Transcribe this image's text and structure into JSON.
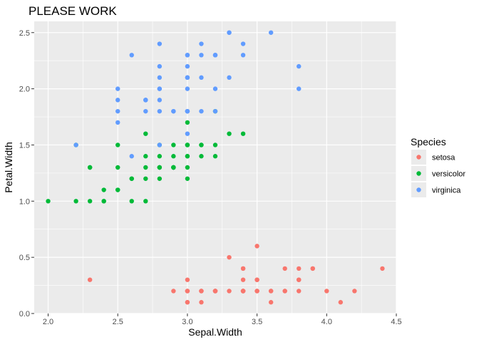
{
  "chart_data": {
    "type": "scatter",
    "title": "PLEASE WORK",
    "xlabel": "Sepal.Width",
    "ylabel": "Petal.Width",
    "xlim": [
      1.9,
      4.5
    ],
    "ylim": [
      0.0,
      2.6
    ],
    "x_ticks": [
      "2.0",
      "2.5",
      "3.0",
      "3.5",
      "4.0",
      "4.5"
    ],
    "y_ticks": [
      "0.0",
      "0.5",
      "1.0",
      "1.5",
      "2.0",
      "2.5"
    ],
    "grid": true,
    "legend_title": "Species",
    "legend_position": "right",
    "series": [
      {
        "name": "setosa",
        "color": "#F8766D",
        "points": [
          [
            3.5,
            0.2
          ],
          [
            3.0,
            0.2
          ],
          [
            3.2,
            0.2
          ],
          [
            3.1,
            0.2
          ],
          [
            3.6,
            0.2
          ],
          [
            3.9,
            0.4
          ],
          [
            3.4,
            0.3
          ],
          [
            3.4,
            0.2
          ],
          [
            2.9,
            0.2
          ],
          [
            3.1,
            0.1
          ],
          [
            3.7,
            0.2
          ],
          [
            3.4,
            0.2
          ],
          [
            3.0,
            0.1
          ],
          [
            3.0,
            0.1
          ],
          [
            4.0,
            0.2
          ],
          [
            4.4,
            0.4
          ],
          [
            3.9,
            0.4
          ],
          [
            3.5,
            0.3
          ],
          [
            3.8,
            0.3
          ],
          [
            3.8,
            0.3
          ],
          [
            3.4,
            0.2
          ],
          [
            3.7,
            0.4
          ],
          [
            3.6,
            0.2
          ],
          [
            3.3,
            0.5
          ],
          [
            3.4,
            0.2
          ],
          [
            3.0,
            0.2
          ],
          [
            3.4,
            0.4
          ],
          [
            3.5,
            0.2
          ],
          [
            3.4,
            0.2
          ],
          [
            3.2,
            0.2
          ],
          [
            3.1,
            0.2
          ],
          [
            3.4,
            0.4
          ],
          [
            4.1,
            0.1
          ],
          [
            4.2,
            0.2
          ],
          [
            3.1,
            0.2
          ],
          [
            3.2,
            0.2
          ],
          [
            3.5,
            0.2
          ],
          [
            3.6,
            0.1
          ],
          [
            3.0,
            0.2
          ],
          [
            3.4,
            0.2
          ],
          [
            3.5,
            0.3
          ],
          [
            2.3,
            0.3
          ],
          [
            3.2,
            0.2
          ],
          [
            3.5,
            0.6
          ],
          [
            3.8,
            0.4
          ],
          [
            3.0,
            0.3
          ],
          [
            3.8,
            0.2
          ],
          [
            3.2,
            0.2
          ],
          [
            3.7,
            0.2
          ],
          [
            3.3,
            0.2
          ]
        ]
      },
      {
        "name": "versicolor",
        "color": "#00BA38",
        "points": [
          [
            3.2,
            1.4
          ],
          [
            3.2,
            1.5
          ],
          [
            3.1,
            1.5
          ],
          [
            2.3,
            1.3
          ],
          [
            2.8,
            1.5
          ],
          [
            2.8,
            1.3
          ],
          [
            3.3,
            1.6
          ],
          [
            2.4,
            1.0
          ],
          [
            2.9,
            1.3
          ],
          [
            2.7,
            1.4
          ],
          [
            2.0,
            1.0
          ],
          [
            3.0,
            1.5
          ],
          [
            2.2,
            1.0
          ],
          [
            2.9,
            1.4
          ],
          [
            2.9,
            1.3
          ],
          [
            3.1,
            1.4
          ],
          [
            3.0,
            1.5
          ],
          [
            2.7,
            1.0
          ],
          [
            2.2,
            1.5
          ],
          [
            2.5,
            1.1
          ],
          [
            3.2,
            1.8
          ],
          [
            2.8,
            1.3
          ],
          [
            2.5,
            1.5
          ],
          [
            2.8,
            1.2
          ],
          [
            2.9,
            1.3
          ],
          [
            3.0,
            1.4
          ],
          [
            2.8,
            1.4
          ],
          [
            3.0,
            1.7
          ],
          [
            2.9,
            1.5
          ],
          [
            2.6,
            1.0
          ],
          [
            2.4,
            1.1
          ],
          [
            2.4,
            1.0
          ],
          [
            2.7,
            1.2
          ],
          [
            2.7,
            1.6
          ],
          [
            3.0,
            1.5
          ],
          [
            3.4,
            1.6
          ],
          [
            3.1,
            1.5
          ],
          [
            2.3,
            1.3
          ],
          [
            3.0,
            1.3
          ],
          [
            2.5,
            1.3
          ],
          [
            2.6,
            1.2
          ],
          [
            3.0,
            1.4
          ],
          [
            2.6,
            1.2
          ],
          [
            2.3,
            1.0
          ],
          [
            2.7,
            1.3
          ],
          [
            3.0,
            1.2
          ],
          [
            2.9,
            1.3
          ],
          [
            2.9,
            1.3
          ],
          [
            2.5,
            1.1
          ],
          [
            2.8,
            1.3
          ]
        ]
      },
      {
        "name": "virginica",
        "color": "#619CFF",
        "points": [
          [
            3.3,
            2.5
          ],
          [
            2.7,
            1.9
          ],
          [
            3.0,
            2.1
          ],
          [
            2.9,
            1.8
          ],
          [
            3.0,
            2.2
          ],
          [
            3.0,
            2.1
          ],
          [
            2.5,
            1.7
          ],
          [
            2.9,
            1.8
          ],
          [
            2.5,
            1.8
          ],
          [
            3.6,
            2.5
          ],
          [
            3.2,
            2.0
          ],
          [
            2.7,
            1.9
          ],
          [
            3.0,
            2.1
          ],
          [
            2.5,
            2.0
          ],
          [
            2.8,
            2.4
          ],
          [
            3.2,
            2.3
          ],
          [
            3.0,
            1.8
          ],
          [
            3.8,
            2.2
          ],
          [
            2.6,
            2.3
          ],
          [
            2.2,
            1.5
          ],
          [
            3.2,
            2.3
          ],
          [
            2.8,
            2.0
          ],
          [
            2.8,
            2.0
          ],
          [
            2.7,
            1.8
          ],
          [
            3.3,
            2.1
          ],
          [
            3.2,
            1.8
          ],
          [
            2.8,
            1.8
          ],
          [
            3.0,
            1.8
          ],
          [
            2.8,
            2.1
          ],
          [
            3.0,
            1.6
          ],
          [
            2.8,
            1.9
          ],
          [
            3.8,
            2.0
          ],
          [
            2.8,
            2.2
          ],
          [
            2.8,
            1.5
          ],
          [
            2.6,
            1.4
          ],
          [
            3.0,
            2.3
          ],
          [
            3.4,
            2.4
          ],
          [
            3.1,
            1.8
          ],
          [
            3.0,
            1.8
          ],
          [
            3.1,
            2.1
          ],
          [
            3.1,
            2.4
          ],
          [
            3.1,
            2.3
          ],
          [
            2.7,
            1.9
          ],
          [
            3.2,
            2.3
          ],
          [
            3.3,
            2.5
          ],
          [
            3.0,
            2.3
          ],
          [
            2.5,
            1.9
          ],
          [
            3.0,
            2.0
          ],
          [
            3.4,
            2.3
          ],
          [
            3.0,
            1.8
          ]
        ]
      }
    ]
  }
}
